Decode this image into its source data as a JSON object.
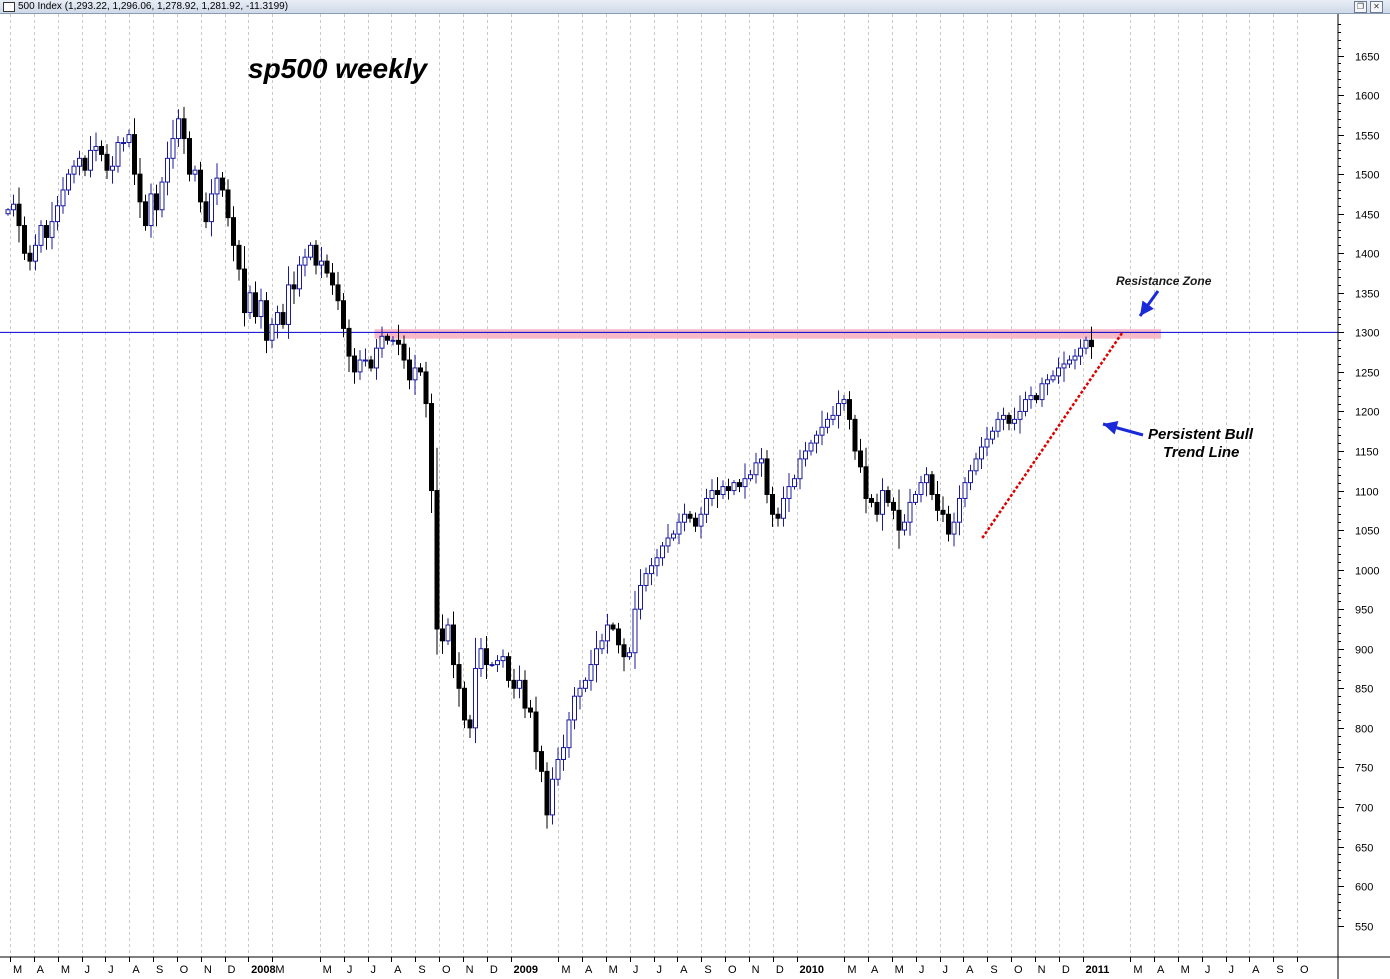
{
  "window": {
    "title": "500 Index (1,293.22, 1,296.06, 1,278.92, 1,281.92, -11.3199)"
  },
  "chart_data": {
    "type": "candlestick",
    "title": "sp500 weekly",
    "ylim": [
      510,
      1700
    ],
    "yticks": [
      550,
      600,
      650,
      700,
      750,
      800,
      850,
      900,
      950,
      1000,
      1050,
      1100,
      1150,
      1200,
      1250,
      1300,
      1350,
      1400,
      1450,
      1500,
      1550,
      1600,
      1650
    ],
    "grid": "vertical-dashed",
    "colors": {
      "up": "#1a1aa0",
      "down": "#000000",
      "resistance_line": "#0000cc",
      "resistance_zone": "#f4a0b4",
      "trend_line": "#dd0000",
      "arrow": "#1a2ad8"
    },
    "months": [
      {
        "label": "M",
        "w": 0
      },
      {
        "label": "A",
        "w": 4.3
      },
      {
        "label": "M",
        "w": 8.7
      },
      {
        "label": "J",
        "w": 13
      },
      {
        "label": "J",
        "w": 17.3
      },
      {
        "label": "A",
        "w": 21.7
      },
      {
        "label": "S",
        "w": 26
      },
      {
        "label": "O",
        "w": 30.3
      },
      {
        "label": "N",
        "w": 34.7
      },
      {
        "label": "D",
        "w": 39
      },
      {
        "label": "2008",
        "w": 43.3
      },
      {
        "label": "M",
        "w": 47.7
      },
      {
        "label": "M",
        "w": 56.3
      },
      {
        "label": "J",
        "w": 60.7
      },
      {
        "label": "J",
        "w": 65
      },
      {
        "label": "A",
        "w": 69.3
      },
      {
        "label": "S",
        "w": 73.7
      },
      {
        "label": "O",
        "w": 78
      },
      {
        "label": "N",
        "w": 82.3
      },
      {
        "label": "D",
        "w": 86.7
      },
      {
        "label": "2009",
        "w": 91
      },
      {
        "label": "M",
        "w": 99.7
      },
      {
        "label": "A",
        "w": 104
      },
      {
        "label": "M",
        "w": 108.3
      },
      {
        "label": "J",
        "w": 112.7
      },
      {
        "label": "J",
        "w": 117
      },
      {
        "label": "A",
        "w": 121.3
      },
      {
        "label": "S",
        "w": 125.7
      },
      {
        "label": "O",
        "w": 130
      },
      {
        "label": "N",
        "w": 134.3
      },
      {
        "label": "D",
        "w": 138.7
      },
      {
        "label": "2010",
        "w": 143
      },
      {
        "label": "M",
        "w": 151.7
      },
      {
        "label": "A",
        "w": 156
      },
      {
        "label": "M",
        "w": 160.3
      },
      {
        "label": "J",
        "w": 164.7
      },
      {
        "label": "J",
        "w": 169
      },
      {
        "label": "A",
        "w": 173.3
      },
      {
        "label": "S",
        "w": 177.7
      },
      {
        "label": "O",
        "w": 182
      },
      {
        "label": "N",
        "w": 186.3
      },
      {
        "label": "D",
        "w": 190.7
      },
      {
        "label": "2011",
        "w": 195
      },
      {
        "label": "M",
        "w": 203.7
      },
      {
        "label": "A",
        "w": 208
      },
      {
        "label": "M",
        "w": 212.3
      },
      {
        "label": "J",
        "w": 216.7
      },
      {
        "label": "J",
        "w": 221
      },
      {
        "label": "A",
        "w": 225.3
      },
      {
        "label": "S",
        "w": 229.7
      },
      {
        "label": "O",
        "w": 234
      }
    ],
    "resistance_level": 1300,
    "resistance_zone": {
      "low": 1292,
      "high": 1304,
      "from_week": 67,
      "to_week": 210
    },
    "trend_line": {
      "from": {
        "week": 177.5,
        "value": 1040
      },
      "to": {
        "week": 203,
        "value": 1300
      }
    },
    "annotations": {
      "resistance": "Resistance Zone",
      "trend_line_1": "Persistent Bull",
      "trend_line_2": "Trend Line"
    },
    "closes": [
      1455,
      1462,
      1435,
      1400,
      1390,
      1410,
      1435,
      1420,
      1440,
      1460,
      1480,
      1500,
      1510,
      1520,
      1505,
      1530,
      1535,
      1525,
      1505,
      1510,
      1540,
      1540,
      1550,
      1500,
      1465,
      1435,
      1475,
      1455,
      1490,
      1520,
      1545,
      1570,
      1545,
      1500,
      1505,
      1465,
      1440,
      1475,
      1495,
      1480,
      1445,
      1410,
      1380,
      1325,
      1350,
      1320,
      1340,
      1290,
      1310,
      1325,
      1310,
      1360,
      1355,
      1385,
      1395,
      1410,
      1385,
      1390,
      1375,
      1360,
      1340,
      1305,
      1270,
      1250,
      1265,
      1265,
      1255,
      1280,
      1295,
      1290,
      1290,
      1285,
      1265,
      1240,
      1255,
      1250,
      1210,
      1100,
      925,
      910,
      930,
      880,
      850,
      810,
      800,
      875,
      900,
      880,
      880,
      885,
      890,
      860,
      850,
      860,
      825,
      820,
      770,
      745,
      690,
      735,
      760,
      775,
      810,
      840,
      850,
      860,
      880,
      900,
      910,
      930,
      925,
      905,
      890,
      895,
      950,
      980,
      995,
      1005,
      1015,
      1030,
      1040,
      1045,
      1060,
      1070,
      1065,
      1055,
      1070,
      1090,
      1100,
      1095,
      1105,
      1100,
      1110,
      1105,
      1115,
      1120,
      1135,
      1140,
      1095,
      1070,
      1065,
      1090,
      1105,
      1115,
      1140,
      1150,
      1160,
      1170,
      1180,
      1190,
      1195,
      1210,
      1215,
      1190,
      1150,
      1130,
      1090,
      1085,
      1070,
      1100,
      1085,
      1075,
      1050,
      1060,
      1085,
      1095,
      1110,
      1120,
      1095,
      1075,
      1070,
      1045,
      1060,
      1090,
      1110,
      1125,
      1140,
      1155,
      1165,
      1175,
      1190,
      1195,
      1185,
      1190,
      1200,
      1215,
      1220,
      1215,
      1235,
      1240,
      1245,
      1255,
      1260,
      1265,
      1270,
      1280,
      1290,
      1282
    ]
  }
}
